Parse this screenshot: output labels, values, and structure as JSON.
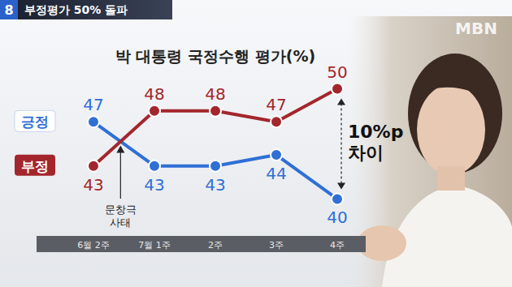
{
  "header": {
    "channel": "8",
    "headline": "부정평가 50% 돌파",
    "logo": "MBN"
  },
  "chart_data": {
    "type": "line",
    "title": "박 대통령 국정수행 평가(%)",
    "categories": [
      "6월 2주",
      "7월 1주",
      "2주",
      "3주",
      "4주"
    ],
    "series": [
      {
        "name": "긍정",
        "color": "#2f6fd6",
        "values": [
          47,
          43,
          43,
          44,
          40
        ],
        "marker": "circle"
      },
      {
        "name": "부정",
        "color": "#a3262c",
        "values": [
          43,
          48,
          48,
          47,
          50
        ],
        "marker": "circle"
      }
    ],
    "ylim": [
      39,
      51
    ],
    "tick_labels": "x",
    "data_labels": true,
    "grid": false,
    "annotations": [
      "문창극 사태",
      "10%p 차이"
    ]
  }
}
